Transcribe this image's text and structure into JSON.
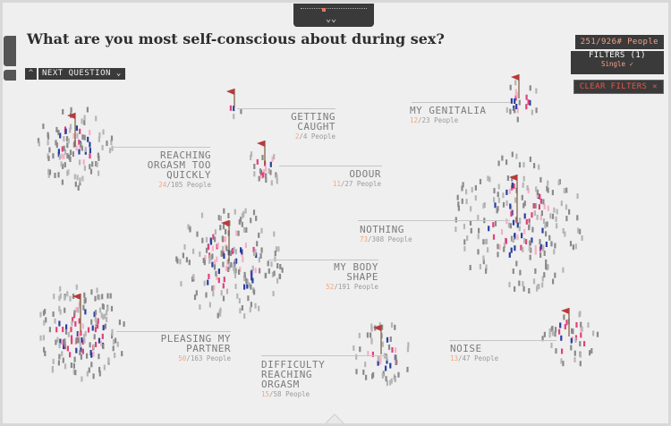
{
  "question": "What are you most self-conscious about during sex?",
  "next_question_label": "NEXT QUESTION",
  "people_count": "251/926# People",
  "filters": {
    "title": "FILTERS (1)",
    "active": "Single ✓"
  },
  "clear_filters": "CLEAR FILTERS ✕",
  "clusters": [
    {
      "label": "GETTING CAUGHT",
      "lines": [
        "GETTING",
        "CAUGHT"
      ],
      "highlight": "2",
      "total": "/4 People"
    },
    {
      "label": "MY GENITALIA",
      "lines": [
        "MY GENITALIA"
      ],
      "highlight": "12",
      "total": "/23 People"
    },
    {
      "label": "REACHING ORGASM TOO QUICKLY",
      "lines": [
        "REACHING",
        "ORGASM TOO",
        "QUICKLY"
      ],
      "highlight": "24",
      "total": "/105 People"
    },
    {
      "label": "ODOUR",
      "lines": [
        "ODOUR"
      ],
      "highlight": "11",
      "total": "/27 People"
    },
    {
      "label": "NOTHING",
      "lines": [
        "NOTHING"
      ],
      "highlight": "73",
      "total": "/308 People"
    },
    {
      "label": "MY BODY SHAPE",
      "lines": [
        "MY BODY",
        "SHAPE"
      ],
      "highlight": "52",
      "total": "/191 People"
    },
    {
      "label": "PLEASING MY PARTNER",
      "lines": [
        "PLEASING MY",
        "PARTNER"
      ],
      "highlight": "50",
      "total": "/163 People"
    },
    {
      "label": "NOISE",
      "lines": [
        "NOISE"
      ],
      "highlight": "13",
      "total": "/47 People"
    },
    {
      "label": "DIFFICULTY REACHING ORGASM",
      "lines": [
        "DIFFICULTY",
        "REACHING",
        "ORGASM"
      ],
      "highlight": "15",
      "total": "/58 People"
    }
  ],
  "colors": {
    "accent": "#f3a67d",
    "blue": "#2b3fa0",
    "pink": "#e2417a",
    "gray": "#9a9a9a",
    "flag": "#b83a3a"
  }
}
